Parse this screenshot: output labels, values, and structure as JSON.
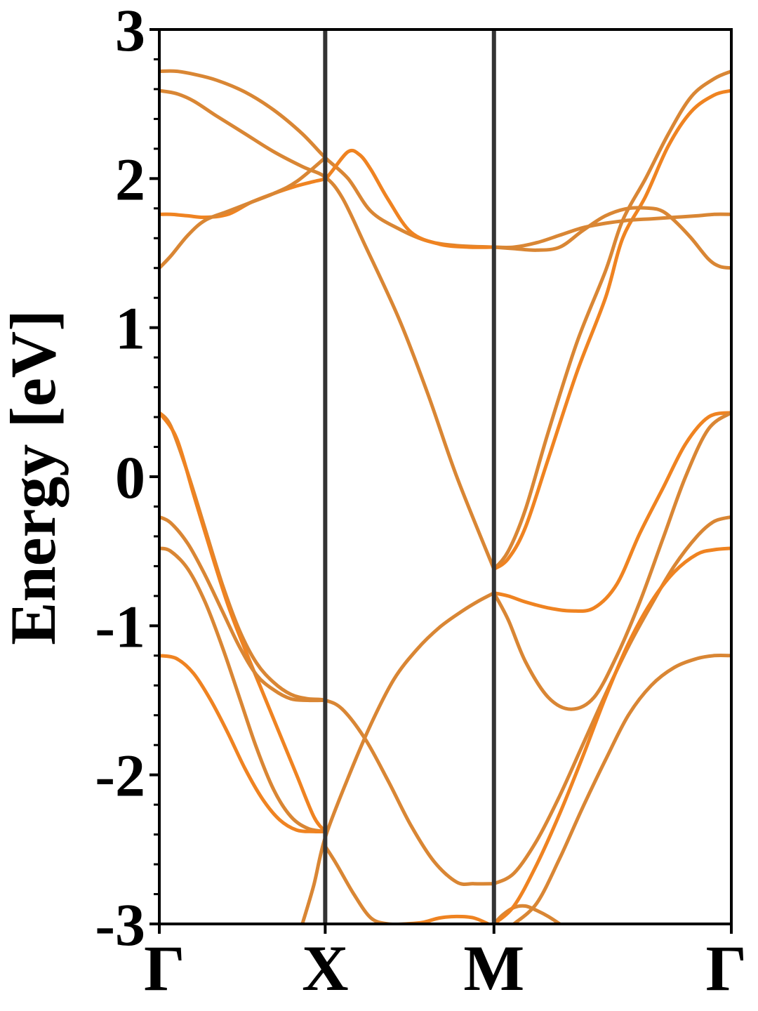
{
  "chart_data": {
    "type": "line",
    "title": "",
    "xlabel": "",
    "ylabel": "Energy [eV]",
    "ylim": [
      -3,
      3
    ],
    "yticks": [
      3,
      2,
      1,
      0,
      -1,
      -2,
      -3
    ],
    "ytick_labels": [
      "3",
      "2",
      "1",
      "0",
      "-1",
      "-2",
      "-3"
    ],
    "y_minor_step": 0.2,
    "grid": false,
    "legend": "none",
    "high_symmetry_points": [
      {
        "label": "Γ",
        "x": 0
      },
      {
        "label": "X",
        "x": 0.29
      },
      {
        "label": "M",
        "x": 0.585
      },
      {
        "label": "Γ",
        "x": 1.0
      }
    ],
    "xlim": [
      0,
      1
    ],
    "line_colors": {
      "band": "#d98634",
      "band_alt": "#ef8321",
      "separator": "#333333"
    },
    "series": [
      {
        "x": [
          0,
          0.03,
          0.06,
          0.1,
          0.15,
          0.2,
          0.25,
          0.29,
          0.33,
          0.37,
          0.42,
          0.47,
          0.52,
          0.585
        ],
        "values": [
          2.72,
          2.72,
          2.7,
          2.66,
          2.58,
          2.46,
          2.3,
          2.14,
          2.0,
          1.78,
          1.66,
          1.58,
          1.55,
          1.54
        ]
      },
      {
        "x": [
          0,
          0.03,
          0.06,
          0.1,
          0.15,
          0.2,
          0.25,
          0.29,
          0.32,
          0.36,
          0.42,
          0.47,
          0.52,
          0.585
        ],
        "values": [
          2.59,
          2.57,
          2.52,
          2.42,
          2.3,
          2.18,
          2.08,
          2.01,
          1.87,
          1.55,
          1.05,
          0.55,
          0.0,
          -0.62
        ]
      },
      {
        "x": [
          0,
          0.02,
          0.05,
          0.08,
          0.12,
          0.16,
          0.2,
          0.24,
          0.27,
          0.29,
          0.3,
          0.33,
          0.35,
          0.37,
          0.4,
          0.44,
          0.49,
          0.54,
          0.585
        ],
        "values": [
          1.76,
          1.76,
          1.75,
          1.74,
          1.76,
          1.84,
          1.9,
          1.95,
          1.98,
          2.0,
          2.04,
          2.18,
          2.16,
          2.06,
          1.86,
          1.64,
          1.56,
          1.54,
          1.54
        ]
      },
      {
        "x": [
          0,
          0.02,
          0.05,
          0.08,
          0.12,
          0.16,
          0.2,
          0.24,
          0.29
        ],
        "values": [
          1.4,
          1.48,
          1.62,
          1.72,
          1.78,
          1.84,
          1.9,
          1.98,
          2.14
        ]
      },
      {
        "x": [
          0,
          0.02,
          0.05,
          0.08,
          0.11,
          0.14,
          0.17,
          0.2,
          0.23,
          0.26,
          0.29,
          0.32,
          0.36,
          0.4,
          0.44,
          0.48,
          0.52,
          0.55,
          0.585
        ],
        "values": [
          0.43,
          0.34,
          0.02,
          -0.35,
          -0.72,
          -1.03,
          -1.25,
          -1.38,
          -1.46,
          -1.49,
          -1.5,
          -1.56,
          -1.76,
          -2.04,
          -2.34,
          -2.58,
          -2.72,
          -2.73,
          -2.73
        ]
      },
      {
        "x": [
          0,
          0.03,
          0.06,
          0.09,
          0.12,
          0.15,
          0.18,
          0.21,
          0.24,
          0.27,
          0.29
        ],
        "values": [
          0.43,
          0.26,
          -0.12,
          -0.5,
          -0.86,
          -1.16,
          -1.44,
          -1.72,
          -2.0,
          -2.28,
          -2.38
        ]
      },
      {
        "x": [
          0,
          0.02,
          0.05,
          0.08,
          0.11,
          0.14,
          0.17,
          0.2,
          0.23,
          0.26,
          0.29
        ],
        "values": [
          -0.27,
          -0.31,
          -0.45,
          -0.66,
          -0.9,
          -1.14,
          -1.33,
          -1.43,
          -1.49,
          -1.5,
          -1.5
        ]
      },
      {
        "x": [
          0,
          0.02,
          0.05,
          0.08,
          0.11,
          0.14,
          0.17,
          0.2,
          0.23,
          0.26,
          0.29
        ],
        "values": [
          -0.48,
          -0.5,
          -0.62,
          -0.84,
          -1.14,
          -1.48,
          -1.82,
          -2.1,
          -2.28,
          -2.36,
          -2.38
        ]
      },
      {
        "x": [
          0,
          0.03,
          0.06,
          0.09,
          0.12,
          0.15,
          0.18,
          0.21,
          0.24,
          0.27,
          0.29
        ],
        "values": [
          -1.2,
          -1.22,
          -1.32,
          -1.5,
          -1.72,
          -1.96,
          -2.16,
          -2.3,
          -2.37,
          -2.38,
          -2.38
        ]
      },
      {
        "x": [
          0.25,
          0.27,
          0.29,
          0.33,
          0.37,
          0.41,
          0.45,
          0.49,
          0.53,
          0.56,
          0.585
        ],
        "values": [
          -3.0,
          -2.74,
          -2.42,
          -2.02,
          -1.66,
          -1.36,
          -1.16,
          -1.01,
          -0.9,
          -0.83,
          -0.78
        ]
      },
      {
        "x": [
          0.29,
          0.31,
          0.34,
          0.37,
          0.4,
          0.43
        ],
        "values": [
          -2.48,
          -2.6,
          -2.8,
          -2.96,
          -3.0,
          -3.0
        ]
      },
      {
        "x": [
          0.43,
          0.46,
          0.49,
          0.52,
          0.55,
          0.575
        ],
        "values": [
          -3.0,
          -2.99,
          -2.96,
          -2.95,
          -2.96,
          -3.0
        ]
      },
      {
        "x": [
          0.585,
          0.6,
          0.62,
          0.64,
          0.66,
          0.68,
          0.7
        ],
        "values": [
          -3.0,
          -2.94,
          -2.89,
          -2.88,
          -2.91,
          -2.95,
          -3.0
        ]
      },
      {
        "x": [
          0.585,
          0.61,
          0.64,
          0.68,
          0.73,
          0.78,
          0.81,
          0.85,
          0.89,
          0.93,
          0.97,
          1.0
        ],
        "values": [
          -0.62,
          -0.5,
          -0.22,
          0.3,
          0.9,
          1.38,
          1.72,
          2.0,
          2.3,
          2.55,
          2.67,
          2.72
        ]
      },
      {
        "x": [
          0.585,
          0.61,
          0.64,
          0.68,
          0.73,
          0.78,
          0.81,
          0.85,
          0.89,
          0.93,
          0.97,
          1.0
        ],
        "values": [
          -0.62,
          -0.55,
          -0.34,
          0.12,
          0.7,
          1.2,
          1.6,
          1.88,
          2.22,
          2.45,
          2.56,
          2.59
        ]
      },
      {
        "x": [
          0.585,
          0.62,
          0.66,
          0.7,
          0.74,
          0.78,
          0.82,
          0.86,
          0.9,
          0.94,
          0.97,
          1.0
        ],
        "values": [
          1.54,
          1.54,
          1.57,
          1.62,
          1.67,
          1.7,
          1.72,
          1.73,
          1.74,
          1.75,
          1.76,
          1.76
        ]
      },
      {
        "x": [
          0.585,
          0.62,
          0.66,
          0.7,
          0.74,
          0.78,
          0.82,
          0.86,
          0.88,
          0.9,
          0.93,
          0.96,
          0.98,
          1.0
        ],
        "values": [
          1.54,
          1.53,
          1.52,
          1.54,
          1.65,
          1.75,
          1.8,
          1.8,
          1.78,
          1.72,
          1.6,
          1.46,
          1.41,
          1.4
        ]
      },
      {
        "x": [
          0.585,
          0.61,
          0.64,
          0.68,
          0.72,
          0.76,
          0.8,
          0.84,
          0.88,
          0.92,
          0.96,
          1.0
        ],
        "values": [
          -0.78,
          -0.8,
          -0.84,
          -0.88,
          -0.9,
          -0.88,
          -0.72,
          -0.38,
          -0.08,
          0.22,
          0.4,
          0.43
        ]
      },
      {
        "x": [
          0.585,
          0.61,
          0.64,
          0.68,
          0.72,
          0.76,
          0.8,
          0.84,
          0.88,
          0.92,
          0.96,
          1.0
        ],
        "values": [
          -0.78,
          -0.96,
          -1.24,
          -1.48,
          -1.56,
          -1.48,
          -1.2,
          -0.84,
          -0.42,
          0.0,
          0.32,
          0.43
        ]
      },
      {
        "x": [
          0.585,
          0.62,
          0.66,
          0.7,
          0.74,
          0.78,
          0.82,
          0.86,
          0.9,
          0.94,
          0.97,
          1.0
        ],
        "values": [
          -2.73,
          -2.66,
          -2.44,
          -2.14,
          -1.8,
          -1.46,
          -1.14,
          -0.86,
          -0.6,
          -0.4,
          -0.3,
          -0.27
        ]
      },
      {
        "x": [
          0.585,
          0.62,
          0.66,
          0.7,
          0.74,
          0.78,
          0.82,
          0.86,
          0.9,
          0.94,
          0.97,
          1.0
        ],
        "values": [
          -3.0,
          -2.88,
          -2.6,
          -2.26,
          -1.88,
          -1.48,
          -1.12,
          -0.84,
          -0.64,
          -0.52,
          -0.49,
          -0.48
        ]
      },
      {
        "x": [
          0.62,
          0.66,
          0.7,
          0.74,
          0.78,
          0.82,
          0.86,
          0.9,
          0.94,
          0.97,
          1.0
        ],
        "values": [
          -3.0,
          -2.86,
          -2.56,
          -2.22,
          -1.9,
          -1.6,
          -1.4,
          -1.28,
          -1.22,
          -1.2,
          -1.2
        ]
      }
    ]
  }
}
